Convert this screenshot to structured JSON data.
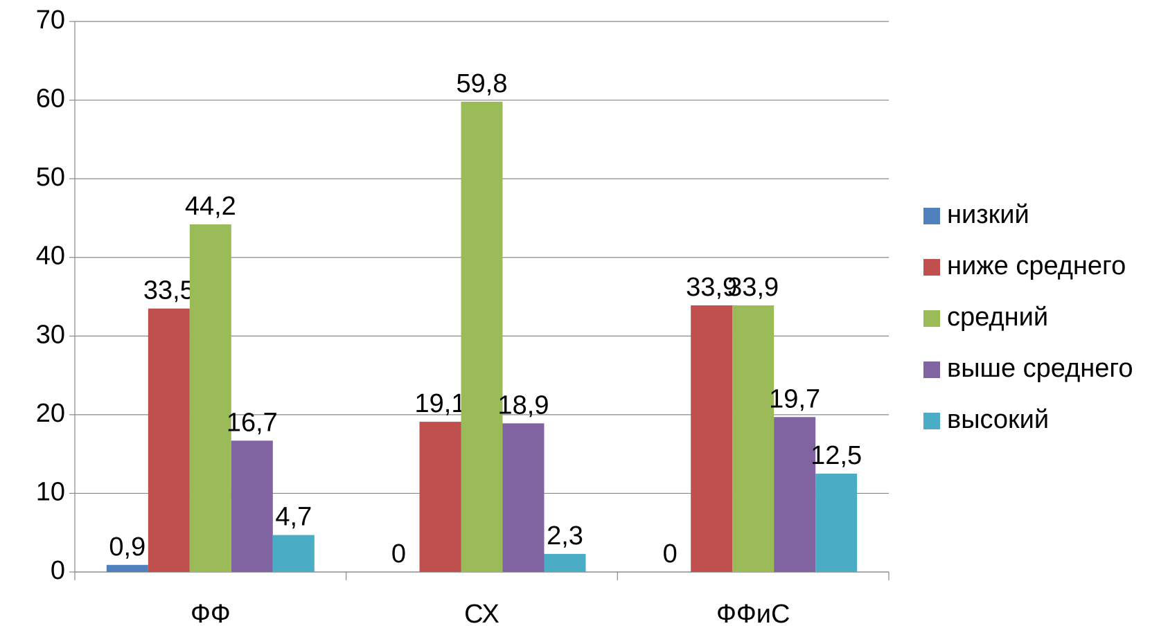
{
  "chart_data": {
    "type": "bar",
    "categories": [
      "ФФ",
      "СХ",
      "ФФиС"
    ],
    "series": [
      {
        "name": "низкий",
        "color": "#4f81bd",
        "values": [
          0.9,
          0,
          0
        ],
        "value_labels": [
          "0,9",
          "0",
          "0"
        ]
      },
      {
        "name": "ниже среднего",
        "color": "#c0504d",
        "values": [
          33.5,
          19.1,
          33.9
        ],
        "value_labels": [
          "33,5",
          "19,1",
          "33,9"
        ]
      },
      {
        "name": "средний",
        "color": "#9bbb59",
        "values": [
          44.2,
          59.8,
          33.9
        ],
        "value_labels": [
          "44,2",
          "59,8",
          "33,9"
        ]
      },
      {
        "name": "выше среднего",
        "color": "#8064a2",
        "values": [
          16.7,
          18.9,
          19.7
        ],
        "value_labels": [
          "16,7",
          "18,9",
          "19,7"
        ]
      },
      {
        "name": "высокий",
        "color": "#4bacc6",
        "values": [
          4.7,
          2.3,
          12.5
        ],
        "value_labels": [
          "4,7",
          "2,3",
          "12,5"
        ]
      }
    ],
    "ylim": [
      0,
      70
    ],
    "yticks": [
      0,
      10,
      20,
      30,
      40,
      50,
      60,
      70
    ],
    "grid": true,
    "legend": "right"
  }
}
